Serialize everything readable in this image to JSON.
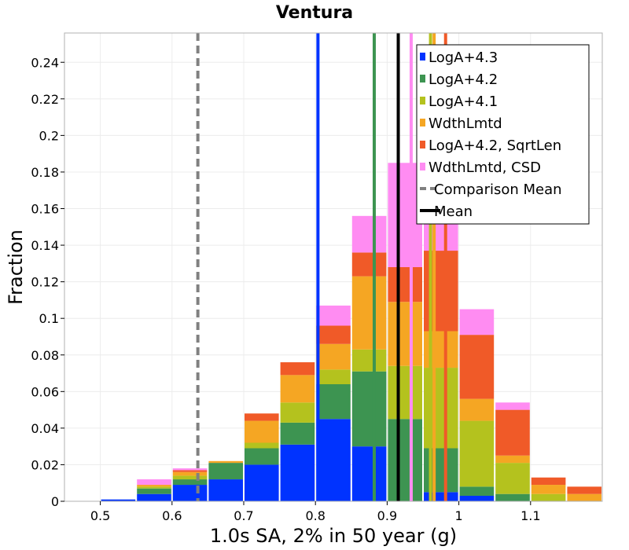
{
  "chart_data": {
    "type": "bar",
    "stacked": true,
    "title": "Ventura",
    "xlabel": "1.0s SA, 2% in 50 year (g)",
    "ylabel": "Fraction",
    "xlim": [
      0.45,
      1.2
    ],
    "ylim": [
      0,
      0.256
    ],
    "grid": true,
    "legend_position": "top-right",
    "xticks": [
      "0.5",
      "0.6",
      "0.7",
      "0.8",
      "0.9",
      "1",
      "1.1"
    ],
    "yticks": [
      "0",
      "0.02",
      "0.04",
      "0.06",
      "0.08",
      "0.1",
      "0.12",
      "0.14",
      "0.16",
      "0.18",
      "0.2",
      "0.22",
      "0.24"
    ],
    "bin_width": 0.05,
    "x": [
      0.475,
      0.525,
      0.575,
      0.625,
      0.675,
      0.725,
      0.775,
      0.825,
      0.875,
      0.925,
      0.975,
      1.025,
      1.075,
      1.125,
      1.175
    ],
    "series": [
      {
        "name": "LogA+4.3",
        "color": "#0033ff",
        "values": [
          0,
          0.001,
          0.004,
          0.009,
          0.012,
          0.02,
          0.031,
          0.045,
          0.03,
          0,
          0.005,
          0.003,
          0,
          0,
          0
        ]
      },
      {
        "name": "LogA+4.2",
        "color": "#3d9451",
        "values": [
          0,
          0,
          0.003,
          0.003,
          0.009,
          0.009,
          0.012,
          0.019,
          0.041,
          0.045,
          0.024,
          0.005,
          0.004,
          0,
          0
        ]
      },
      {
        "name": "LogA+4.1",
        "color": "#b4c21e",
        "values": [
          0,
          0,
          0.001,
          0.002,
          0,
          0.003,
          0.011,
          0.008,
          0.012,
          0.029,
          0.044,
          0.036,
          0.017,
          0.004,
          0
        ]
      },
      {
        "name": "WdthLmtd",
        "color": "#f5a623",
        "values": [
          0,
          0,
          0.001,
          0.002,
          0.001,
          0.012,
          0.015,
          0.014,
          0.04,
          0.035,
          0.02,
          0.012,
          0.004,
          0.005,
          0.004
        ]
      },
      {
        "name": "LogA+4.2, SqrtLen",
        "color": "#f05a28",
        "values": [
          0,
          0,
          0,
          0.001,
          0,
          0.004,
          0.007,
          0.01,
          0.013,
          0.019,
          0.044,
          0.035,
          0.025,
          0.004,
          0.004
        ]
      },
      {
        "name": "WdthLmtd, CSD",
        "color": "#ff8cf2",
        "values": [
          0,
          0,
          0.003,
          0.001,
          0,
          0,
          0,
          0.011,
          0.02,
          0.057,
          0.049,
          0.014,
          0.004,
          0,
          0
        ]
      }
    ],
    "vertical_lines": [
      {
        "series": "LogA+4.3",
        "x": 0.8035,
        "color": "#0033ff",
        "style": "solid"
      },
      {
        "series": "LogA+4.2",
        "x": 0.882,
        "color": "#3d9451",
        "style": "solid"
      },
      {
        "series": "WdthLmtd, CSD",
        "x": 0.9335,
        "color": "#ff8cf2",
        "style": "solid"
      },
      {
        "series": "LogA+4.1",
        "x": 0.9605,
        "color": "#b4c21e",
        "style": "solid"
      },
      {
        "series": "WdthLmtd",
        "x": 0.9655,
        "color": "#f5a623",
        "style": "solid"
      },
      {
        "series": "LogA+4.2, SqrtLen",
        "x": 0.9815,
        "color": "#f05a28",
        "style": "solid"
      },
      {
        "series": "Mean",
        "x": 0.9155,
        "color": "#000000",
        "style": "solid"
      },
      {
        "series": "Comparison Mean",
        "x": 0.636,
        "color": "#808080",
        "style": "dashed"
      }
    ],
    "legend": [
      {
        "label": "LogA+4.3",
        "color": "#0033ff",
        "kind": "patch"
      },
      {
        "label": "LogA+4.2",
        "color": "#3d9451",
        "kind": "patch"
      },
      {
        "label": "LogA+4.1",
        "color": "#b4c21e",
        "kind": "patch"
      },
      {
        "label": "WdthLmtd",
        "color": "#f5a623",
        "kind": "patch"
      },
      {
        "label": "LogA+4.2, SqrtLen",
        "color": "#f05a28",
        "kind": "patch"
      },
      {
        "label": "WdthLmtd, CSD",
        "color": "#ff8cf2",
        "kind": "patch"
      },
      {
        "label": "Comparison Mean",
        "color": "#808080",
        "kind": "dashed-line"
      },
      {
        "label": "Mean",
        "color": "#000000",
        "kind": "solid-line"
      }
    ]
  }
}
